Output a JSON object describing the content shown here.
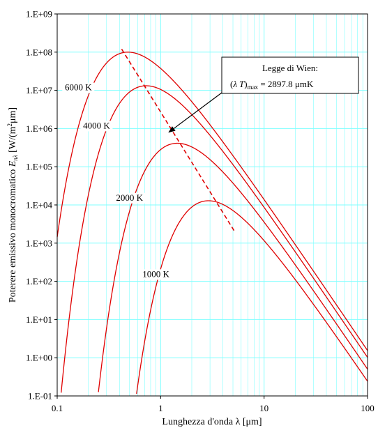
{
  "chart_data": {
    "type": "line",
    "xlabel": "Lunghezza d'onda λ [μm]",
    "ylabel_prefix": "Poterere emissivo monocromatico ",
    "ylabel_symbol": "E",
    "ylabel_symbol_sub": "nλ",
    "ylabel_unit_before": "[W/(m",
    "ylabel_unit_sup": "2",
    "ylabel_unit_after": "μm]",
    "x_scale": "log",
    "y_scale": "log",
    "xlim": [
      0.1,
      100
    ],
    "ylim": [
      0.1,
      1000000000
    ],
    "x_ticks": [
      {
        "value": 0.1,
        "label": "0.1"
      },
      {
        "value": 1,
        "label": "1"
      },
      {
        "value": 10,
        "label": "10"
      },
      {
        "value": 100,
        "label": "100"
      }
    ],
    "y_ticks": [
      {
        "value": 0.1,
        "label": "1.E-01"
      },
      {
        "value": 1,
        "label": "1.E+00"
      },
      {
        "value": 10,
        "label": "1.E+01"
      },
      {
        "value": 100,
        "label": "1.E+02"
      },
      {
        "value": 1000,
        "label": "1.E+03"
      },
      {
        "value": 10000,
        "label": "1.E+04"
      },
      {
        "value": 100000,
        "label": "1.E+05"
      },
      {
        "value": 1000000,
        "label": "1.E+06"
      },
      {
        "value": 10000000,
        "label": "1.E+07"
      },
      {
        "value": 100000000,
        "label": "1.E+08"
      },
      {
        "value": 1000000000,
        "label": "1.E+09"
      }
    ],
    "grid": true,
    "series": [
      {
        "name": "6000 K",
        "temperature": 6000,
        "label_at": [
          0.16,
          10000000
        ]
      },
      {
        "name": "4000 K",
        "temperature": 4000,
        "label_at": [
          0.24,
          1000000
        ]
      },
      {
        "name": "2000 K",
        "temperature": 2000,
        "label_at": [
          0.5,
          13000
        ]
      },
      {
        "name": "1000 K",
        "temperature": 1000,
        "label_at": [
          0.9,
          130
        ]
      }
    ],
    "wien_line": {
      "x": [
        0.42,
        5.2
      ],
      "y": [
        120000000,
        2000
      ]
    },
    "annotation": {
      "line1": "Legge di Wien:",
      "line2_open": "(",
      "line2_lambda": "λ",
      "line2_T": "T",
      "line2_close": ")",
      "line2_sub": "max",
      "line2_rest": " = 2897.8 μmK",
      "arrow_to": [
        1.2,
        800000
      ]
    },
    "colors": {
      "curves": "#e00000",
      "grid": "#7fffff",
      "frame": "#000000"
    }
  }
}
